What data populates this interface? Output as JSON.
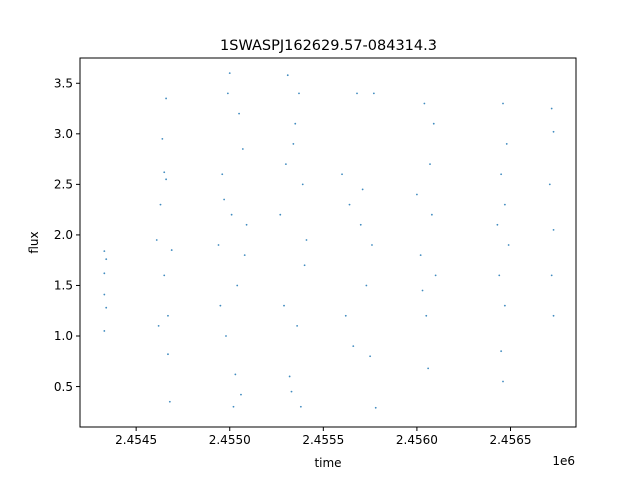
{
  "chart_data": {
    "type": "scatter",
    "title": "1SWASPJ162629.57-084314.3",
    "xlabel": "time",
    "ylabel": "flux",
    "x_offset_label": "1e6",
    "xlim": [
      2.4542,
      2.45685
    ],
    "ylim": [
      0.1,
      3.75
    ],
    "x_ticks": [
      {
        "value": 2.4545,
        "label": "2.4545"
      },
      {
        "value": 2.455,
        "label": "2.4550"
      },
      {
        "value": 2.4555,
        "label": "2.4555"
      },
      {
        "value": 2.456,
        "label": "2.4560"
      },
      {
        "value": 2.4565,
        "label": "2.4565"
      }
    ],
    "y_ticks": [
      {
        "value": 0.5,
        "label": "0.5"
      },
      {
        "value": 1.0,
        "label": "1.0"
      },
      {
        "value": 1.5,
        "label": "1.5"
      },
      {
        "value": 2.0,
        "label": "2.0"
      },
      {
        "value": 2.5,
        "label": "2.5"
      },
      {
        "value": 3.0,
        "label": "3.0"
      },
      {
        "value": 3.5,
        "label": "3.5"
      }
    ],
    "grid": false,
    "color": "#1f77b4",
    "series": [
      {
        "points": [
          [
            2.45433,
            1.84
          ],
          [
            2.45433,
            1.05
          ],
          [
            2.45433,
            1.62
          ],
          [
            2.45434,
            1.28
          ],
          [
            2.45433,
            1.41
          ],
          [
            2.45434,
            1.76
          ],
          [
            2.45461,
            1.95
          ],
          [
            2.45463,
            2.3
          ],
          [
            2.45465,
            1.6
          ],
          [
            2.45466,
            2.55
          ],
          [
            2.45467,
            1.2
          ],
          [
            2.45468,
            0.35
          ],
          [
            2.45466,
            3.35
          ],
          [
            2.45464,
            2.95
          ],
          [
            2.45469,
            1.85
          ],
          [
            2.45462,
            1.1
          ],
          [
            2.45465,
            2.62
          ],
          [
            2.45467,
            0.82
          ],
          [
            2.45494,
            1.9
          ],
          [
            2.45496,
            2.6
          ],
          [
            2.45498,
            1.0
          ],
          [
            2.455,
            3.6
          ],
          [
            2.45501,
            2.2
          ],
          [
            2.45503,
            0.62
          ],
          [
            2.45504,
            1.5
          ],
          [
            2.45505,
            3.2
          ],
          [
            2.45506,
            0.42
          ],
          [
            2.45507,
            2.85
          ],
          [
            2.45508,
            1.8
          ],
          [
            2.45502,
            0.3
          ],
          [
            2.45499,
            3.4
          ],
          [
            2.45497,
            2.35
          ],
          [
            2.45495,
            1.3
          ],
          [
            2.45509,
            2.1
          ],
          [
            2.45527,
            2.2
          ],
          [
            2.45529,
            1.3
          ],
          [
            2.45531,
            3.58
          ],
          [
            2.45533,
            0.45
          ],
          [
            2.45534,
            2.9
          ],
          [
            2.45536,
            1.1
          ],
          [
            2.45537,
            3.4
          ],
          [
            2.45538,
            0.3
          ],
          [
            2.45539,
            2.5
          ],
          [
            2.4554,
            1.7
          ],
          [
            2.45541,
            1.95
          ],
          [
            2.45535,
            3.1
          ],
          [
            2.45532,
            0.6
          ],
          [
            2.4553,
            2.7
          ],
          [
            2.4556,
            2.6
          ],
          [
            2.45562,
            1.2
          ],
          [
            2.45564,
            2.3
          ],
          [
            2.45566,
            0.9
          ],
          [
            2.45568,
            3.4
          ],
          [
            2.4557,
            2.1
          ],
          [
            2.45573,
            1.5
          ],
          [
            2.45575,
            0.8
          ],
          [
            2.45577,
            3.4
          ],
          [
            2.45578,
            0.29
          ],
          [
            2.45576,
            1.9
          ],
          [
            2.45571,
            2.45
          ],
          [
            2.456,
            2.4
          ],
          [
            2.45602,
            1.8
          ],
          [
            2.45604,
            3.3
          ],
          [
            2.45605,
            1.2
          ],
          [
            2.45606,
            0.68
          ],
          [
            2.45608,
            2.2
          ],
          [
            2.45609,
            3.1
          ],
          [
            2.4561,
            1.6
          ],
          [
            2.45607,
            2.7
          ],
          [
            2.45603,
            1.45
          ],
          [
            2.45643,
            2.1
          ],
          [
            2.45644,
            1.6
          ],
          [
            2.45645,
            2.6
          ],
          [
            2.45645,
            0.85
          ],
          [
            2.45646,
            0.55
          ],
          [
            2.45646,
            3.3
          ],
          [
            2.45647,
            1.3
          ],
          [
            2.45648,
            2.9
          ],
          [
            2.45649,
            1.9
          ],
          [
            2.45647,
            2.3
          ],
          [
            2.45671,
            2.5
          ],
          [
            2.45672,
            1.6
          ],
          [
            2.45672,
            3.25
          ],
          [
            2.45673,
            1.2
          ],
          [
            2.45673,
            2.05
          ],
          [
            2.45673,
            3.02
          ]
        ]
      }
    ]
  }
}
